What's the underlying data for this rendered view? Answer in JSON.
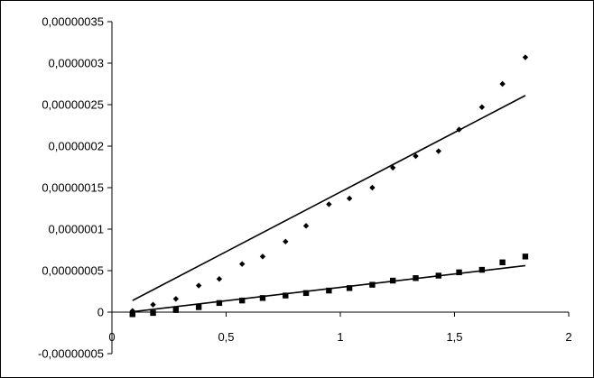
{
  "chart_data": {
    "type": "scatter",
    "title": "",
    "xlabel": "",
    "ylabel": "",
    "xlim": [
      0,
      2
    ],
    "ylim": [
      -5e-08,
      3.5e-07
    ],
    "x_ticks": [
      {
        "value": 0,
        "label": "0"
      },
      {
        "value": 0.5,
        "label": "0,5"
      },
      {
        "value": 1,
        "label": "1"
      },
      {
        "value": 1.5,
        "label": "1,5"
      },
      {
        "value": 2,
        "label": "2"
      }
    ],
    "y_ticks": [
      {
        "value": -5e-08,
        "label": "-0,00000005"
      },
      {
        "value": 0,
        "label": "0"
      },
      {
        "value": 5e-08,
        "label": "0,00000005"
      },
      {
        "value": 1e-07,
        "label": "0,0000001"
      },
      {
        "value": 1.5e-07,
        "label": "0,00000015"
      },
      {
        "value": 2e-07,
        "label": "0,0000002"
      },
      {
        "value": 2.5e-07,
        "label": "0,00000025"
      },
      {
        "value": 3e-07,
        "label": "0,0000003"
      },
      {
        "value": 3.5e-07,
        "label": "0,00000035"
      }
    ],
    "grid": false,
    "legend": "none",
    "series": [
      {
        "marker": "diamond",
        "color": "#000000",
        "points": [
          [
            0.09,
            1.5e-09
          ],
          [
            0.18,
            9e-09
          ],
          [
            0.28,
            1.6e-08
          ],
          [
            0.38,
            3.2e-08
          ],
          [
            0.47,
            4e-08
          ],
          [
            0.57,
            5.8e-08
          ],
          [
            0.66,
            6.7e-08
          ],
          [
            0.76,
            8.5e-08
          ],
          [
            0.85,
            1.04e-07
          ],
          [
            0.95,
            1.3e-07
          ],
          [
            1.04,
            1.37e-07
          ],
          [
            1.14,
            1.5e-07
          ],
          [
            1.23,
            1.74e-07
          ],
          [
            1.33,
            1.88e-07
          ],
          [
            1.43,
            1.94e-07
          ],
          [
            1.52,
            2.2e-07
          ],
          [
            1.62,
            2.47e-07
          ],
          [
            1.71,
            2.75e-07
          ],
          [
            1.81,
            3.07e-07
          ]
        ],
        "trendline": [
          [
            0.09,
            1.4e-08
          ],
          [
            1.81,
            2.61e-07
          ]
        ]
      },
      {
        "marker": "square",
        "color": "#000000",
        "points": [
          [
            0.09,
            -2.5e-09
          ],
          [
            0.18,
            -1e-09
          ],
          [
            0.28,
            2.5e-09
          ],
          [
            0.38,
            6e-09
          ],
          [
            0.47,
            1.1e-08
          ],
          [
            0.57,
            1.4e-08
          ],
          [
            0.66,
            1.7e-08
          ],
          [
            0.76,
            2e-08
          ],
          [
            0.85,
            2.3e-08
          ],
          [
            0.95,
            2.6e-08
          ],
          [
            1.04,
            2.9e-08
          ],
          [
            1.14,
            3.3e-08
          ],
          [
            1.23,
            3.8e-08
          ],
          [
            1.33,
            4.1e-08
          ],
          [
            1.43,
            4.4e-08
          ],
          [
            1.52,
            4.8e-08
          ],
          [
            1.62,
            5.1e-08
          ],
          [
            1.71,
            6e-08
          ],
          [
            1.81,
            6.7e-08
          ]
        ],
        "trendline": [
          [
            0.09,
            5e-10
          ],
          [
            1.81,
            5.6e-08
          ]
        ]
      }
    ]
  }
}
